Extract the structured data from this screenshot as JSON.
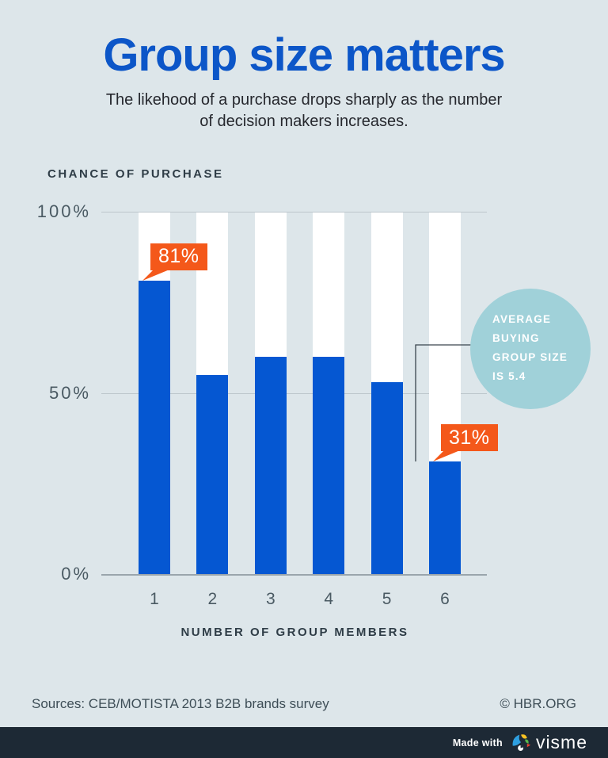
{
  "header": {
    "title": "Group size matters",
    "subtitle_lines": [
      "The likehood of a purchase drops sharply as the number",
      "of decision makers increases."
    ]
  },
  "chart_data": {
    "type": "bar",
    "title": "Group size matters",
    "axis_title": "CHANCE OF PURCHASE",
    "xlabel": "NUMBER OF GROUP MEMBERS",
    "ylabel": "CHANCE OF PURCHASE",
    "categories": [
      "1",
      "2",
      "3",
      "4",
      "5",
      "6"
    ],
    "values": [
      81,
      55,
      60,
      60,
      53,
      31
    ],
    "unit": "%",
    "ylim": [
      0,
      100
    ],
    "yticks": [
      {
        "label": "100%",
        "value": 100
      },
      {
        "label": "50%",
        "value": 50
      },
      {
        "label": "0%",
        "value": 0
      }
    ],
    "grid": "horizontal",
    "legend": "none",
    "data_labels": [
      {
        "category": "1",
        "label": "81%"
      },
      {
        "category": "6",
        "label": "31%"
      }
    ],
    "annotation": {
      "text": "AVERAGE BUYING GROUP SIZE IS 5.4",
      "lines": [
        "AVERAGE",
        "BUYING",
        "GROUP SIZE",
        "IS 5.4"
      ]
    }
  },
  "footer": {
    "sources": "Sources: CEB/MOTISTA 2013 B2B brands survey",
    "credit": "© HBR.ORG"
  },
  "bottom_bar": {
    "made_with": "Made with",
    "brand": "visme"
  },
  "colors": {
    "background": "#dde6ea",
    "bar_blue": "#0557d2",
    "title_blue": "#0c56c8",
    "callout_orange": "#f4581a",
    "annotation_teal": "#a0d1d9",
    "bottom_bar_navy": "#1d2935",
    "column_white": "#ffffff",
    "gridline": "#bcc6cb",
    "axis_line": "#9aa5ac",
    "tick_gray": "#4a5a63",
    "text_dark": "#2f3d47"
  }
}
